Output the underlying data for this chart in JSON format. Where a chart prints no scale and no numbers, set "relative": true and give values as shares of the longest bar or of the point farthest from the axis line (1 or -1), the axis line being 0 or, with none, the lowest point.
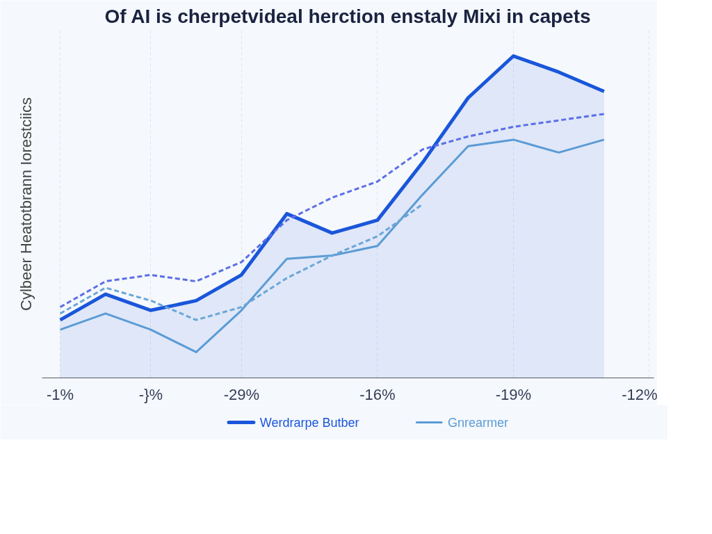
{
  "chart_data": {
    "type": "line",
    "title": "Of AI is cherpetvideal herction enstaly Mixi in capets",
    "ylabel": "Cylbeer Heatotbrann Iorestciics",
    "relative": true,
    "categories": [
      "-1%",
      null,
      "-}%",
      null,
      "-29%",
      null,
      null,
      "-16%",
      null,
      null,
      "-19%",
      null,
      null,
      "-12%"
    ],
    "grid": true,
    "legend": "bottom",
    "marker": "none",
    "series": [
      {
        "name": "Werdrarpe Butber",
        "type": "area",
        "color": "#1a56db",
        "line_style": "solid",
        "values": [
          0.18,
          0.26,
          0.21,
          0.24,
          0.32,
          0.51,
          0.45,
          0.49,
          0.67,
          0.87,
          1.0,
          0.95,
          0.89,
          null
        ]
      },
      {
        "color": "#5b6ee8",
        "line_style": "dashed",
        "values": [
          0.22,
          0.3,
          0.32,
          0.3,
          0.36,
          0.49,
          0.56,
          0.61,
          0.71,
          0.75,
          0.78,
          0.8,
          0.82,
          null
        ]
      },
      {
        "name": "Gnrearmer",
        "color": "#5b9bd5",
        "line_style": "solid",
        "values": [
          0.15,
          0.2,
          0.15,
          0.08,
          0.21,
          0.37,
          0.38,
          0.41,
          0.57,
          0.72,
          0.74,
          0.7,
          0.74,
          null
        ]
      },
      {
        "color": "#6aa6d8",
        "line_style": "dashed",
        "values": [
          0.2,
          0.28,
          0.24,
          0.18,
          0.22,
          0.31,
          0.38,
          0.44,
          0.54,
          null,
          null,
          null,
          null,
          null
        ]
      }
    ]
  }
}
